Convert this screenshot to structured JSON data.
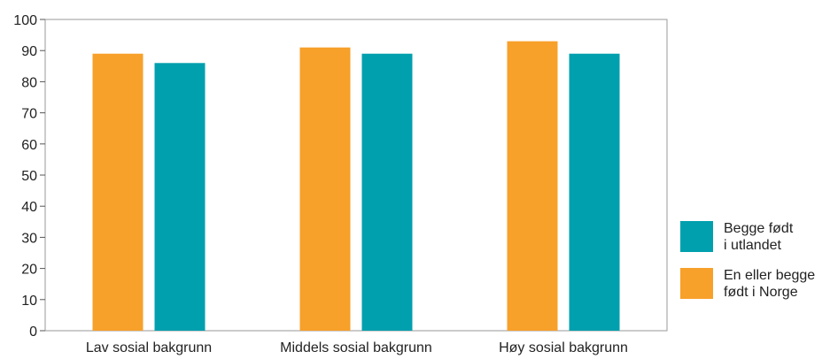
{
  "chart_data": {
    "type": "bar",
    "categories": [
      "Lav sosial bakgrunn",
      "Middels sosial bakgrunn",
      "Høy sosial bakgrunn"
    ],
    "series": [
      {
        "name": "En eller begge født i Norge",
        "legend_lines": [
          "En eller begge",
          "født i Norge"
        ],
        "color": "#f7a02a",
        "values": [
          89,
          91,
          93
        ]
      },
      {
        "name": "Begge født i utlandet",
        "legend_lines": [
          "Begge født",
          "i utlandet"
        ],
        "color": "#00a0ae",
        "values": [
          86,
          89,
          89
        ]
      }
    ],
    "ylim": [
      0,
      100
    ],
    "yticks": [
      0,
      10,
      20,
      30,
      40,
      50,
      60,
      70,
      80,
      90,
      100
    ],
    "grid": false,
    "legend_position": "right",
    "legend_order": [
      1,
      0
    ]
  }
}
